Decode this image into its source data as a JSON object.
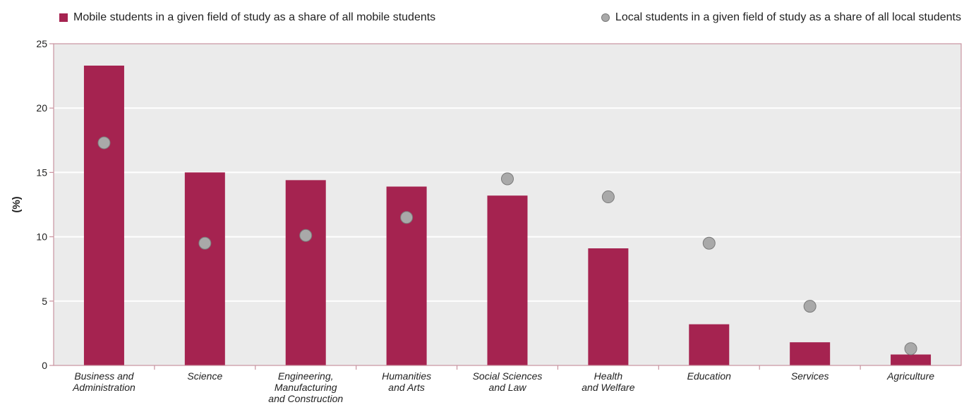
{
  "chart_data": {
    "type": "bar",
    "title": "",
    "xlabel": "",
    "ylabel": "(%)",
    "ylim": [
      0,
      25
    ],
    "yticks": [
      0,
      5,
      10,
      15,
      20,
      25
    ],
    "grid": true,
    "legend_position": "top",
    "categories": [
      [
        "Business and",
        "Administration"
      ],
      [
        "Science"
      ],
      [
        "Engineering,",
        "Manufacturing",
        "and Construction"
      ],
      [
        "Humanities",
        "and Arts"
      ],
      [
        "Social Sciences",
        "and Law"
      ],
      [
        "Health",
        "and Welfare"
      ],
      [
        "Education"
      ],
      [
        "Services"
      ],
      [
        "Agriculture"
      ]
    ],
    "series": [
      {
        "name": "Mobile students in a given field of study as a share of all mobile students",
        "type": "bar",
        "color": "#a52350",
        "values": [
          23.3,
          15.0,
          14.4,
          13.9,
          13.2,
          9.1,
          3.2,
          1.8,
          0.85
        ]
      },
      {
        "name": "Local students in a given field of study as a share of all local students",
        "type": "marker",
        "color": "#a9a9a9",
        "values": [
          17.3,
          9.5,
          10.1,
          11.5,
          14.5,
          13.1,
          9.5,
          4.6,
          1.3
        ]
      }
    ],
    "plot_background": "#ebebeb",
    "axis_color": "#c9939f"
  }
}
